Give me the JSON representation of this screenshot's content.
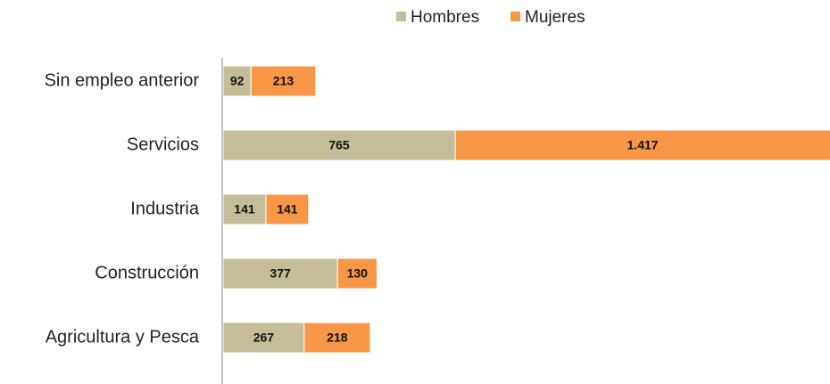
{
  "chart_data": {
    "type": "stacked_barh",
    "categories": [
      "Sin empleo anterior",
      "Servicios",
      "Industria",
      "Construcción",
      "Agricultura y  Pesca"
    ],
    "series": [
      {
        "name": "Hombres",
        "color": "#c4bd97",
        "values": [
          92,
          765,
          141,
          377,
          267
        ]
      },
      {
        "name": "Mujeres",
        "color": "#f79646",
        "values": [
          213,
          1417,
          141,
          130,
          218
        ],
        "value_labels": [
          "213",
          "1.417",
          "141",
          "130",
          "218"
        ]
      }
    ]
  }
}
